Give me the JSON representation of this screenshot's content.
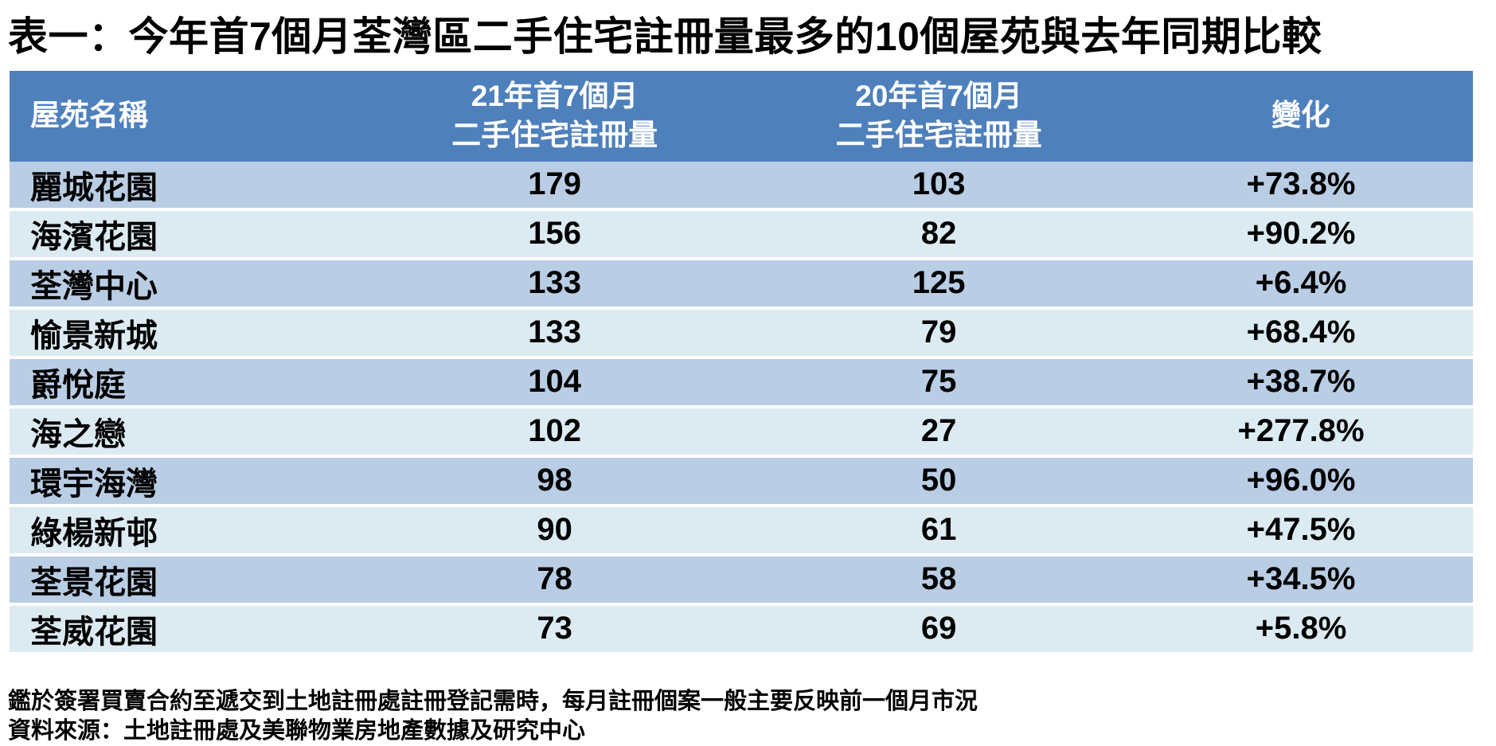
{
  "title": "表一：今年首7個月荃灣區二手住宅註冊量最多的10個屋苑與去年同期比較",
  "header": {
    "estate": "屋苑名稱",
    "col2021": {
      "line1": "21年首7個月",
      "line2": "二手住宅註冊量"
    },
    "col2020": {
      "line1": "20年首7個月",
      "line2": "二手住宅註冊量"
    },
    "change": "變化"
  },
  "chart_data": {
    "type": "table",
    "title": "表一：今年首7個月荃灣區二手住宅註冊量最多的10個屋苑與去年同期比較",
    "columns": [
      "屋苑名稱",
      "21年首7個月二手住宅註冊量",
      "20年首7個月二手住宅註冊量",
      "變化"
    ],
    "rows": [
      [
        "麗城花園",
        "179",
        "103",
        "+73.8%"
      ],
      [
        "海濱花園",
        "156",
        "82",
        "+90.2%"
      ],
      [
        "荃灣中心",
        "133",
        "125",
        "+6.4%"
      ],
      [
        "愉景新城",
        "133",
        "79",
        "+68.4%"
      ],
      [
        "爵悅庭",
        "104",
        "75",
        "+38.7%"
      ],
      [
        "海之戀",
        "102",
        "27",
        "+277.8%"
      ],
      [
        "環宇海灣",
        "98",
        "50",
        "+96.0%"
      ],
      [
        "綠楊新邨",
        "90",
        "61",
        "+47.5%"
      ],
      [
        "荃景花園",
        "78",
        "58",
        "+34.5%"
      ],
      [
        "荃威花園",
        "73",
        "69",
        "+5.8%"
      ]
    ]
  },
  "footnotes": {
    "note1": "鑑於簽署買賣合約至遞交到土地註冊處註冊登記需時，每月註冊個案一般主要反映前一個月市況",
    "note2": "資料來源：土地註冊處及美聯物業房地產數據及研究中心"
  },
  "colors": {
    "header-bg": "#4E80BC",
    "row-dark": "#B9CDE4",
    "row-light": "#DCEBF2",
    "header-text": "#FFFFFF",
    "body-text": "#000000",
    "page-bg": "#FFFFFF"
  }
}
